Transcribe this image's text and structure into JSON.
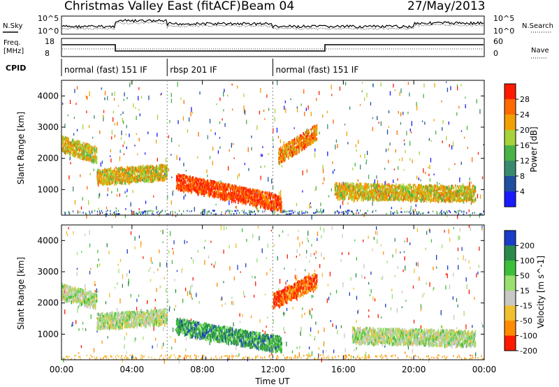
{
  "header": {
    "title": "Christmas Valley East (fitACF)",
    "beam": "Beam 04",
    "date": "27/May/2013"
  },
  "small_panels": {
    "nsky_label": "N.Sky",
    "nsearch_label": "N.Search",
    "freq_label_1": "Freq.",
    "freq_label_2": "[MHz]",
    "nave_label": "Nave",
    "cpid_label": "CPID",
    "noise_ticks_left": [
      "10^5",
      "10^0"
    ],
    "noise_ticks_right": [
      "10^5",
      "10^0"
    ],
    "freq_ticks_left": [
      "18",
      "8"
    ],
    "nave_ticks_right": [
      "60",
      "0"
    ]
  },
  "cpid_segments": [
    {
      "label": "normal (fast) 151 IF",
      "start_hour": 0
    },
    {
      "label": "rbsp 201 IF",
      "start_hour": 6
    },
    {
      "label": "normal (fast) 151 IF",
      "start_hour": 12
    }
  ],
  "xaxis": {
    "ticks": [
      "00:00",
      "04:00",
      "08:00",
      "12:00",
      "16:00",
      "20:00",
      "00:00"
    ],
    "label": "Time UT"
  },
  "chart_data": [
    {
      "type": "heatmap",
      "name": "power",
      "ylabel": "Slant Range [km]",
      "yticks": [
        "1000",
        "2000",
        "3000",
        "4000"
      ],
      "ylim": [
        180,
        4500
      ],
      "xlim_hours": [
        0,
        24
      ],
      "colorbar_label": "Power [dB]",
      "colorbar_ticks": [
        "4",
        "8",
        "12",
        "16",
        "20",
        "24",
        "28"
      ],
      "colors": [
        "#1a1aff",
        "#1f4fa0",
        "#3a8a6e",
        "#49b349",
        "#a8d23a",
        "#f0a000",
        "#ff6a00",
        "#ff1a00"
      ],
      "features": [
        {
          "t_start": 0.0,
          "t_end": 2.0,
          "range_start": 2500,
          "range_end": 2150,
          "level": 5
        },
        {
          "t_start": 2.0,
          "t_end": 6.0,
          "range_start": 1450,
          "range_end": 1600,
          "level": 5
        },
        {
          "t_start": 6.5,
          "t_end": 12.5,
          "range_start": 1300,
          "range_end": 600,
          "level": 7
        },
        {
          "t_start": 12.3,
          "t_end": 14.5,
          "range_start": 2100,
          "range_end": 2900,
          "level": 6
        },
        {
          "t_start": 15.5,
          "t_end": 23.5,
          "range_start": 1000,
          "range_end": 900,
          "level": 5
        }
      ]
    },
    {
      "type": "heatmap",
      "name": "velocity",
      "ylabel": "Slant Range [km]",
      "yticks": [
        "1000",
        "2000",
        "3000",
        "4000"
      ],
      "ylim": [
        180,
        4500
      ],
      "xlim_hours": [
        0,
        24
      ],
      "colorbar_label": "Velocity [m s^-1]",
      "colorbar_ticks": [
        "200",
        "100",
        "50",
        "15",
        "-15",
        "-50",
        "-100",
        "-200"
      ],
      "colors": [
        "#1a3cc8",
        "#2a8a4a",
        "#3bbf3b",
        "#99e070",
        "#c8c8c4",
        "#f0c030",
        "#ff8c00",
        "#ff1a00"
      ],
      "features": [
        {
          "t_start": 0.0,
          "t_end": 2.0,
          "range_start": 2400,
          "range_end": 2100,
          "color_index": 4
        },
        {
          "t_start": 2.0,
          "t_end": 6.0,
          "range_start": 1450,
          "range_end": 1600,
          "color_index": 4
        },
        {
          "t_start": 6.5,
          "t_end": 12.5,
          "range_start": 1300,
          "range_end": 700,
          "color_index": 2
        },
        {
          "t_start": 12.0,
          "t_end": 14.5,
          "range_start": 2100,
          "range_end": 2800,
          "color_index": 7
        },
        {
          "t_start": 16.5,
          "t_end": 23.5,
          "range_start": 1000,
          "range_end": 900,
          "color_index": 4
        }
      ]
    }
  ]
}
